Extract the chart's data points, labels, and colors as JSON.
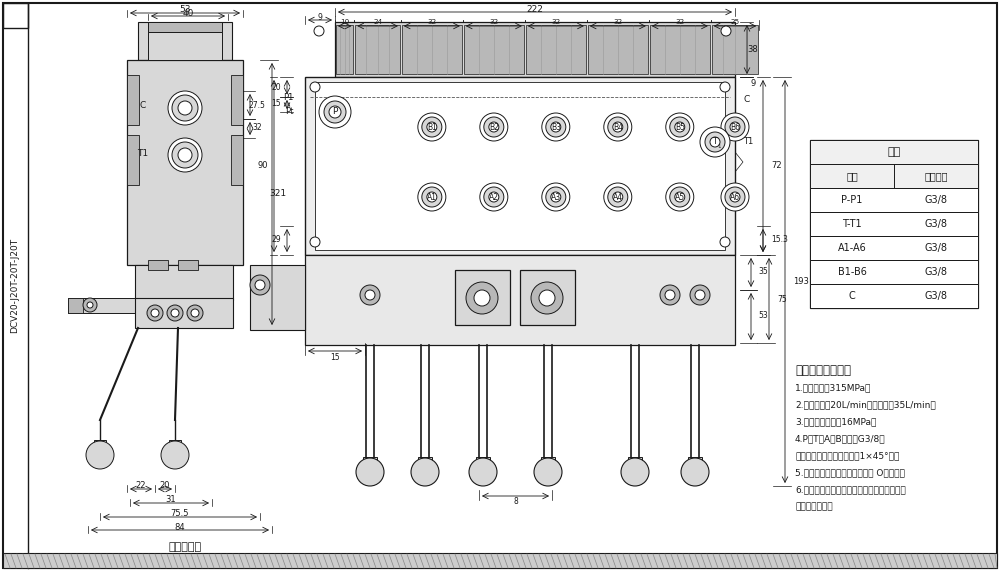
{
  "bg_color": "#ffffff",
  "line_color": "#1a1a1a",
  "title_rotated": "DCV20-J20T-20T-J20T",
  "drawing_title": "液压原理图",
  "table_title": "阀体",
  "table_headers": [
    "接口",
    "贺纹规格"
  ],
  "table_rows": [
    [
      "P-P1",
      "G3/8"
    ],
    [
      "T-T1",
      "G3/8"
    ],
    [
      "A1-A6",
      "G3/8"
    ],
    [
      "B1-B6",
      "G3/8"
    ],
    [
      "C",
      "G3/8"
    ]
  ],
  "tech_title": "技术要求及参数：",
  "tech_items": [
    "1.额定压力：315MPa；",
    "2.额定流量：20L/min，最大流量35L/min；",
    "3.安装调定压力：16MPa；",
    "4.P、T、A、B口均为G3/8，",
    "均为平面密封，贺纹孔口倡1×45°角。",
    "5.控制方式：手动、弹簧复位。 O型阔口；",
    "6.阀体表面礴化处理，安全阀及螺呓锁紧，支",
    "架后盖为铝本色"
  ],
  "gray_light": "#d8d8d8",
  "gray_mid": "#b8b8b8",
  "gray_dark": "#888888",
  "white": "#ffffff"
}
